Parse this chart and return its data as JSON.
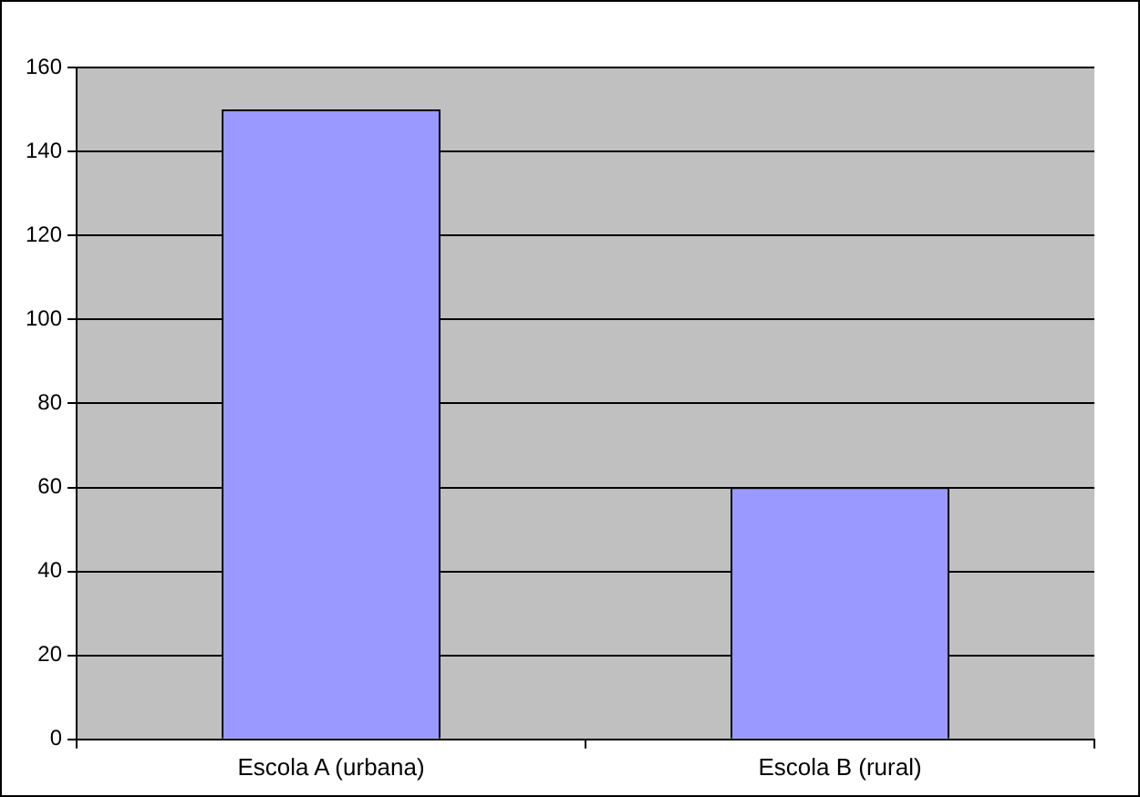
{
  "chart_data": {
    "type": "bar",
    "categories": [
      "Escola A (urbana)",
      "Escola B (rural)"
    ],
    "values": [
      150,
      60
    ],
    "color": "#9999ff",
    "ylim": [
      0,
      160
    ],
    "yticks": [
      0,
      20,
      40,
      60,
      80,
      100,
      120,
      140,
      160
    ],
    "grid": "y"
  }
}
